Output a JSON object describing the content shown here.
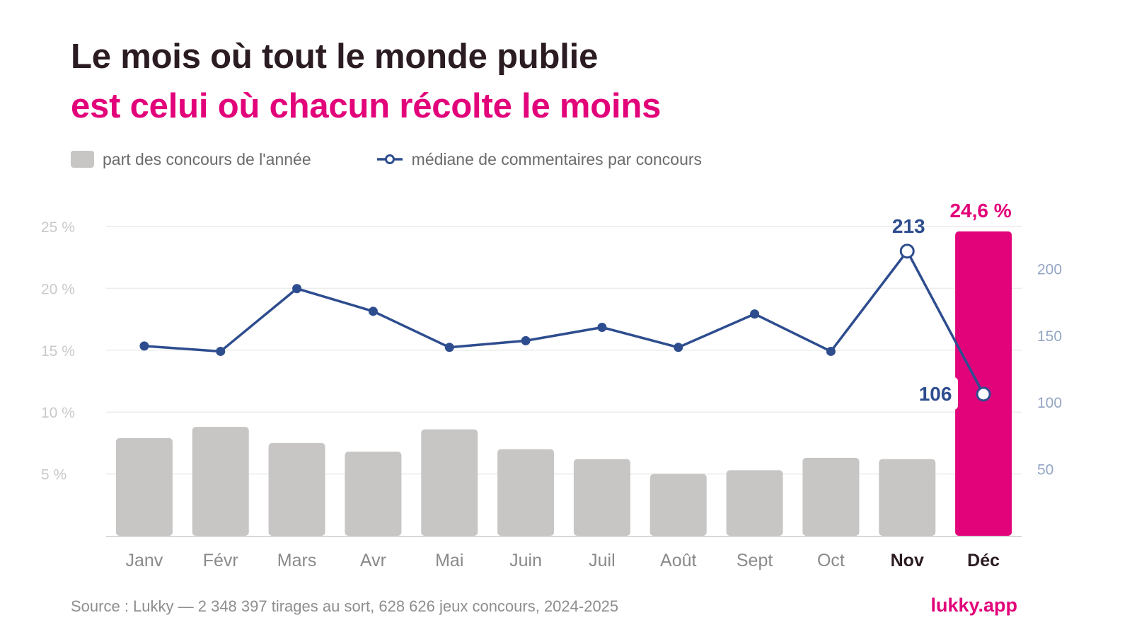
{
  "header": {
    "title": "Le mois où tout le monde publie",
    "subtitle": "est celui où chacun récolte le moins"
  },
  "legend": {
    "bars_label": "part des concours de l'année",
    "line_label": "médiane de commentaires par concours"
  },
  "footer": {
    "source": "Source : Lukky — 2 348 397 tirages au sort, 628 626 jeux concours, 2024-2025",
    "brand": "lukky.app"
  },
  "colors": {
    "bar": "#c8c5c5",
    "bar_highlight": "#e2037a",
    "line": "#2e4d8f",
    "title": "#2b1b22",
    "accent": "#e2037a",
    "left_tick": "#c9c9c9",
    "right_tick": "#94a6c4",
    "grid": "#ececec",
    "month": "#8a8a8a",
    "month_bold": "#2b1b22"
  },
  "chart_data": {
    "type": "bar",
    "categories": [
      "Janv",
      "Févr",
      "Mars",
      "Avr",
      "Mai",
      "Juin",
      "Juil",
      "Août",
      "Sept",
      "Oct",
      "Nov",
      "Déc"
    ],
    "bold_categories": [
      "Nov",
      "Déc"
    ],
    "series": [
      {
        "name": "part des concours de l'année",
        "type": "bar",
        "axis": "left",
        "values": [
          7.9,
          8.8,
          7.5,
          6.8,
          8.6,
          7.0,
          6.2,
          5.0,
          5.3,
          6.3,
          6.2,
          24.6
        ],
        "highlight_index": 11,
        "data_labels": {
          "11": "24,6 %"
        }
      },
      {
        "name": "médiane de commentaires par concours",
        "type": "line",
        "axis": "right",
        "values": [
          142,
          138,
          185,
          168,
          141,
          146,
          156,
          141,
          166,
          138,
          213,
          106
        ],
        "open_marker_indices": [
          10,
          11
        ],
        "data_labels": {
          "10": "213",
          "11": "106"
        }
      }
    ],
    "y_left": {
      "min": 0,
      "max": 25,
      "ticks": [
        5,
        10,
        15,
        20,
        25
      ],
      "tick_labels": [
        "5 %",
        "10 %",
        "15 %",
        "20 %",
        "25 %"
      ]
    },
    "y_right": {
      "min": 0,
      "max": 240,
      "ticks": [
        50,
        100,
        150,
        200
      ],
      "tick_labels": [
        "50",
        "100",
        "150",
        "200"
      ]
    },
    "grid": true,
    "legend_position": "top-left"
  }
}
